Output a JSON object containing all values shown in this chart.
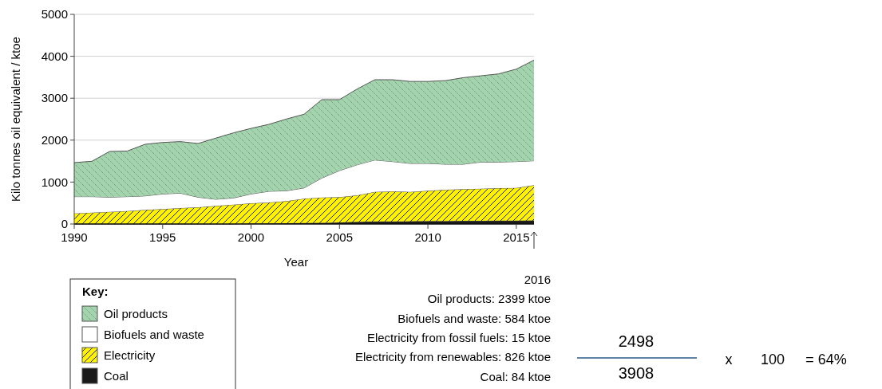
{
  "chart_data": {
    "type": "area",
    "stacked": true,
    "xlabel": "Year",
    "ylabel": "Kilo tonnes oil equivalent / ktoe",
    "legend_title": "Key:",
    "legend": "bottom left",
    "grid": "y",
    "x": [
      1990,
      1991,
      1992,
      1993,
      1994,
      1995,
      1996,
      1997,
      1998,
      1999,
      2000,
      2001,
      2002,
      2003,
      2004,
      2005,
      2006,
      2007,
      2008,
      2009,
      2010,
      2011,
      2012,
      2013,
      2014,
      2015,
      2016
    ],
    "xlim": [
      1990,
      2016
    ],
    "xticks": [
      1990,
      1995,
      2000,
      2005,
      2010,
      2015
    ],
    "ylim": [
      0,
      5000
    ],
    "yticks": [
      0,
      1000,
      2000,
      3000,
      4000,
      5000
    ],
    "series": [
      {
        "name": "Coal",
        "color": "#1a1a1a",
        "values": [
          0,
          0,
          0,
          0,
          0,
          0,
          0,
          0,
          0,
          0,
          10,
          15,
          20,
          25,
          30,
          40,
          50,
          60,
          60,
          65,
          70,
          70,
          75,
          75,
          80,
          80,
          84
        ]
      },
      {
        "name": "Electricity",
        "color": "#fff200",
        "values": [
          253,
          272,
          291,
          310,
          336,
          355,
          380,
          399,
          431,
          462,
          484,
          498,
          525,
          580,
          603,
          600,
          634,
          706,
          720,
          701,
          722,
          747,
          755,
          767,
          775,
          781,
          841
        ]
      },
      {
        "name": "Biofuels and waste",
        "color": "#ffffff",
        "values": [
          400,
          381,
          349,
          343,
          334,
          361,
          356,
          241,
          159,
          159,
          222,
          267,
          247,
          255,
          463,
          633,
          729,
          761,
          709,
          679,
          653,
          609,
          596,
          635,
          622,
          628,
          584
        ]
      },
      {
        "name": "Oil products",
        "color": "#a3d4ad",
        "values": [
          811,
          843,
          1090,
          1087,
          1230,
          1229,
          1229,
          1280,
          1457,
          1552,
          1564,
          1596,
          1711,
          1758,
          1870,
          1693,
          1807,
          1914,
          1952,
          1955,
          1955,
          1994,
          2064,
          2058,
          2103,
          2205,
          2399
        ]
      }
    ],
    "annotations": [
      "2016",
      "Oil products: 2399 ktoe",
      "Biofuels and waste: 584 ktoe",
      "Electricity from fossil fuels: 15 ktoe",
      "Electricity from renewables: 826 ktoe",
      "Coal: 84 ktoe",
      "2498",
      "3908",
      "x",
      "100",
      "= 64%"
    ]
  }
}
